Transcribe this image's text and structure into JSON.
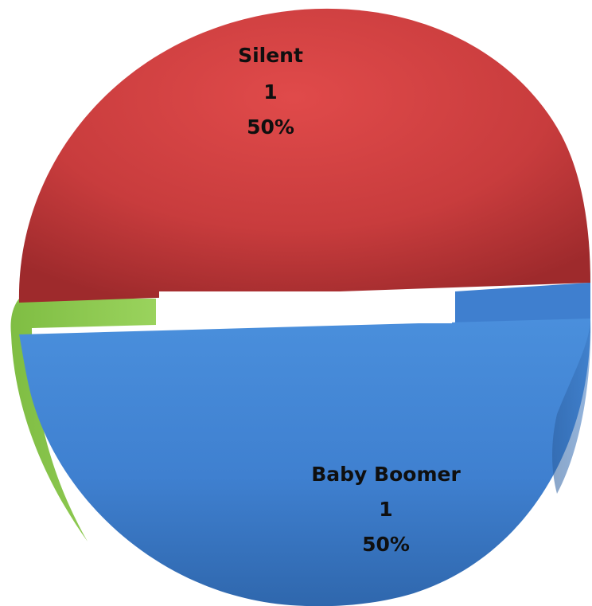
{
  "chart_data": {
    "type": "pie",
    "style": "3d-exploded",
    "categories": [
      "Silent",
      "Baby Boomer"
    ],
    "values": [
      1,
      1
    ],
    "percentages": [
      "50%",
      "50%"
    ],
    "labels": [
      {
        "category": "Silent",
        "value": "1",
        "percent": "50%"
      },
      {
        "category": "Baby Boomer",
        "value": "1",
        "percent": "50%"
      }
    ],
    "colors": {
      "Silent": "#c0393b",
      "Baby Boomer": "#3f80d0",
      "edge_green": "#8dca4f"
    },
    "legend": "none"
  }
}
